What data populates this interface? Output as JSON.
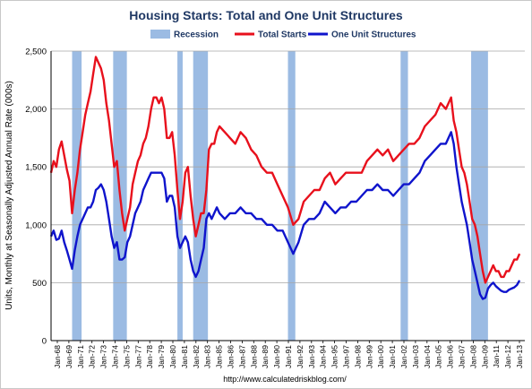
{
  "chart_data": {
    "type": "line",
    "title": "Housing Starts: Total and One Unit Structures",
    "ylabel": "Units, Monthly at Seasonally Adjusted Annual Rate (000s)",
    "xlabel": "",
    "source": "http://www.calculatedriskblog.com/",
    "ylim": [
      0,
      2500
    ],
    "yticks": [
      0,
      500,
      1000,
      1500,
      2000,
      2500
    ],
    "ytick_labels": [
      "0",
      "500",
      "1,000",
      "1,500",
      "2,000",
      "2,500"
    ],
    "xlim": [
      1968,
      2013
    ],
    "xtick_labels": [
      "Jan-68",
      "Jan-69",
      "Jan-71",
      "Jan-72",
      "Jan-73",
      "Jan-74",
      "Jan-75",
      "Jan-77",
      "Jan-78",
      "Jan-79",
      "Jan-80",
      "Jan-81",
      "Jan-82",
      "Jan-83",
      "Jan-85",
      "Jan-86",
      "Jan-87",
      "Jan-88",
      "Jan-89",
      "Jan-90",
      "Jan-91",
      "Jan-92",
      "Jan-93",
      "Jan-94",
      "Jan-95",
      "Jan-97",
      "Jan-98",
      "Jan-99",
      "Jan-00",
      "Jan-01",
      "Jan-02",
      "Jan-03",
      "Jan-04",
      "Jan-05",
      "Jan-06",
      "Jan-07",
      "Jan-08",
      "Jan-09",
      "Jan-11",
      "Jan-12",
      "Jan-13"
    ],
    "grid": true,
    "legend_position": "top-center",
    "recession_periods": [
      [
        1970.0,
        1970.9
      ],
      [
        1973.9,
        1975.2
      ],
      [
        1980.0,
        1980.5
      ],
      [
        1981.5,
        1982.9
      ],
      [
        1990.5,
        1991.2
      ],
      [
        2001.2,
        2001.9
      ],
      [
        2007.9,
        2009.5
      ]
    ],
    "series": [
      {
        "name": "Total Starts",
        "color": "#e8101c",
        "x": [
          1968.0,
          1968.25,
          1968.5,
          1968.75,
          1969.0,
          1969.25,
          1969.5,
          1969.75,
          1970.0,
          1970.25,
          1970.5,
          1970.75,
          1971.0,
          1971.25,
          1971.5,
          1971.75,
          1972.0,
          1972.25,
          1972.5,
          1972.75,
          1973.0,
          1973.25,
          1973.5,
          1973.75,
          1974.0,
          1974.25,
          1974.5,
          1974.75,
          1975.0,
          1975.25,
          1975.5,
          1975.75,
          1976.0,
          1976.25,
          1976.5,
          1976.75,
          1977.0,
          1977.25,
          1977.5,
          1977.75,
          1978.0,
          1978.25,
          1978.5,
          1978.75,
          1979.0,
          1979.25,
          1979.5,
          1979.75,
          1980.0,
          1980.25,
          1980.5,
          1980.75,
          1981.0,
          1981.25,
          1981.5,
          1981.75,
          1982.0,
          1982.25,
          1982.5,
          1982.75,
          1983.0,
          1983.25,
          1983.5,
          1983.75,
          1984.0,
          1984.5,
          1985.0,
          1985.5,
          1986.0,
          1986.5,
          1987.0,
          1987.5,
          1988.0,
          1988.5,
          1989.0,
          1989.5,
          1990.0,
          1990.5,
          1991.0,
          1991.5,
          1992.0,
          1992.5,
          1993.0,
          1993.5,
          1994.0,
          1994.5,
          1995.0,
          1995.5,
          1996.0,
          1996.5,
          1997.0,
          1997.5,
          1998.0,
          1998.5,
          1999.0,
          1999.5,
          2000.0,
          2000.5,
          2001.0,
          2001.5,
          2002.0,
          2002.5,
          2003.0,
          2003.5,
          2004.0,
          2004.5,
          2005.0,
          2005.5,
          2006.0,
          2006.25,
          2006.5,
          2006.75,
          2007.0,
          2007.25,
          2007.5,
          2007.75,
          2008.0,
          2008.25,
          2008.5,
          2008.75,
          2009.0,
          2009.25,
          2009.5,
          2009.75,
          2010.0,
          2010.25,
          2010.5,
          2010.75,
          2011.0,
          2011.25,
          2011.5,
          2011.75,
          2012.0,
          2012.25,
          2012.5
        ],
        "values": [
          1450,
          1550,
          1500,
          1650,
          1720,
          1600,
          1480,
          1380,
          1100,
          1300,
          1450,
          1650,
          1800,
          1950,
          2050,
          2150,
          2300,
          2450,
          2400,
          2350,
          2250,
          2050,
          1900,
          1700,
          1500,
          1550,
          1300,
          1100,
          950,
          1050,
          1150,
          1350,
          1450,
          1550,
          1600,
          1700,
          1750,
          1850,
          2000,
          2100,
          2100,
          2050,
          2100,
          2000,
          1750,
          1750,
          1800,
          1600,
          1300,
          1050,
          1200,
          1450,
          1500,
          1250,
          1050,
          900,
          1000,
          1100,
          1100,
          1300,
          1650,
          1700,
          1700,
          1800,
          1850,
          1800,
          1750,
          1700,
          1800,
          1750,
          1650,
          1600,
          1500,
          1450,
          1450,
          1350,
          1250,
          1150,
          1000,
          1050,
          1200,
          1250,
          1300,
          1300,
          1400,
          1450,
          1350,
          1400,
          1450,
          1450,
          1450,
          1450,
          1550,
          1600,
          1650,
          1600,
          1650,
          1550,
          1600,
          1650,
          1700,
          1700,
          1750,
          1850,
          1900,
          1950,
          2050,
          2000,
          2100,
          1900,
          1800,
          1650,
          1500,
          1450,
          1350,
          1200,
          1050,
          1000,
          900,
          750,
          600,
          500,
          550,
          600,
          650,
          600,
          600,
          550,
          550,
          600,
          600,
          650,
          700,
          700,
          750
        ]
      },
      {
        "name": "One Unit Structures",
        "color": "#0f14cc",
        "x": [
          1968.0,
          1968.25,
          1968.5,
          1968.75,
          1969.0,
          1969.25,
          1969.5,
          1969.75,
          1970.0,
          1970.25,
          1970.5,
          1970.75,
          1971.0,
          1971.25,
          1971.5,
          1971.75,
          1972.0,
          1972.25,
          1972.5,
          1972.75,
          1973.0,
          1973.25,
          1973.5,
          1973.75,
          1974.0,
          1974.25,
          1974.5,
          1974.75,
          1975.0,
          1975.25,
          1975.5,
          1975.75,
          1976.0,
          1976.25,
          1976.5,
          1976.75,
          1977.0,
          1977.25,
          1977.5,
          1977.75,
          1978.0,
          1978.25,
          1978.5,
          1978.75,
          1979.0,
          1979.25,
          1979.5,
          1979.75,
          1980.0,
          1980.25,
          1980.5,
          1980.75,
          1981.0,
          1981.25,
          1981.5,
          1981.75,
          1982.0,
          1982.25,
          1982.5,
          1982.75,
          1983.0,
          1983.25,
          1983.5,
          1983.75,
          1984.0,
          1984.5,
          1985.0,
          1985.5,
          1986.0,
          1986.5,
          1987.0,
          1987.5,
          1988.0,
          1988.5,
          1989.0,
          1989.5,
          1990.0,
          1990.5,
          1991.0,
          1991.5,
          1992.0,
          1992.5,
          1993.0,
          1993.5,
          1994.0,
          1994.5,
          1995.0,
          1995.5,
          1996.0,
          1996.5,
          1997.0,
          1997.5,
          1998.0,
          1998.5,
          1999.0,
          1999.5,
          2000.0,
          2000.5,
          2001.0,
          2001.5,
          2002.0,
          2002.5,
          2003.0,
          2003.5,
          2004.0,
          2004.5,
          2005.0,
          2005.5,
          2006.0,
          2006.25,
          2006.5,
          2006.75,
          2007.0,
          2007.25,
          2007.5,
          2007.75,
          2008.0,
          2008.25,
          2008.5,
          2008.75,
          2009.0,
          2009.25,
          2009.5,
          2009.75,
          2010.0,
          2010.25,
          2010.5,
          2010.75,
          2011.0,
          2011.25,
          2011.5,
          2011.75,
          2012.0,
          2012.25,
          2012.5
        ],
        "values": [
          900,
          950,
          870,
          880,
          950,
          850,
          780,
          700,
          620,
          780,
          900,
          1000,
          1050,
          1100,
          1150,
          1150,
          1200,
          1300,
          1320,
          1350,
          1300,
          1200,
          1050,
          900,
          800,
          850,
          700,
          700,
          720,
          850,
          900,
          1000,
          1100,
          1150,
          1200,
          1300,
          1350,
          1400,
          1450,
          1450,
          1450,
          1450,
          1450,
          1400,
          1200,
          1250,
          1250,
          1150,
          900,
          800,
          850,
          900,
          850,
          700,
          600,
          550,
          600,
          700,
          800,
          1050,
          1100,
          1050,
          1100,
          1150,
          1100,
          1050,
          1100,
          1100,
          1150,
          1100,
          1100,
          1050,
          1050,
          1000,
          1000,
          950,
          950,
          850,
          750,
          850,
          1000,
          1050,
          1050,
          1100,
          1200,
          1150,
          1100,
          1150,
          1150,
          1200,
          1200,
          1250,
          1300,
          1300,
          1350,
          1300,
          1300,
          1250,
          1300,
          1350,
          1350,
          1400,
          1450,
          1550,
          1600,
          1650,
          1700,
          1700,
          1800,
          1700,
          1500,
          1350,
          1200,
          1100,
          1000,
          850,
          700,
          600,
          500,
          400,
          360,
          370,
          450,
          480,
          500,
          470,
          450,
          430,
          420,
          420,
          440,
          450,
          460,
          480,
          520
        ]
      }
    ],
    "legend": [
      {
        "label": "Recession",
        "color": "#9bbbe3",
        "kind": "patch"
      },
      {
        "label": "Total Starts",
        "color": "#e8101c",
        "kind": "line"
      },
      {
        "label": "One Unit Structures",
        "color": "#0f14cc",
        "kind": "line"
      }
    ]
  }
}
